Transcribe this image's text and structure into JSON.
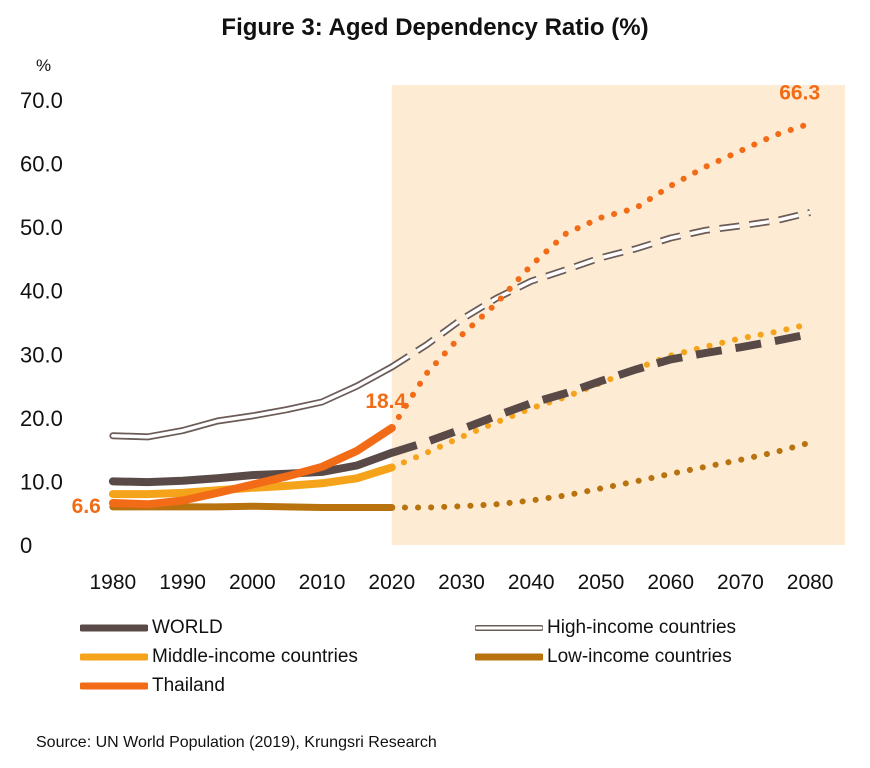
{
  "chart_data": {
    "type": "line",
    "title": "Figure 3: Aged Dependency Ratio (%)",
    "ylabel": "%",
    "y_tick_labels": [
      "0",
      "10.0",
      "20.0",
      "30.0",
      "40.0",
      "50.0",
      "60.0",
      "70.0"
    ],
    "y_ticks": [
      0,
      10,
      20,
      30,
      40,
      50,
      60,
      70
    ],
    "x_tick_labels": [
      "1980",
      "1990",
      "2000",
      "2010",
      "2020",
      "2030",
      "2040",
      "2050",
      "2060",
      "2070",
      "2080"
    ],
    "x_ticks": [
      1980,
      1990,
      2000,
      2010,
      2020,
      2030,
      2040,
      2050,
      2060,
      2070,
      2080
    ],
    "xlim": [
      1975,
      2085
    ],
    "ylim": [
      0,
      70
    ],
    "projection_start": 2020,
    "grid": false,
    "legend_position": "bottom",
    "series": [
      {
        "name": "WORLD",
        "color": "#594a47",
        "x": [
          1980,
          1985,
          1990,
          1995,
          2000,
          2005,
          2010,
          2015,
          2020,
          2025,
          2030,
          2035,
          2040,
          2045,
          2050,
          2055,
          2060,
          2065,
          2070,
          2075,
          2080
        ],
        "values": [
          10.0,
          9.9,
          10.1,
          10.5,
          11.0,
          11.2,
          11.5,
          12.5,
          14.5,
          16.2,
          18.2,
          20.3,
          22.3,
          23.9,
          25.8,
          27.6,
          29.2,
          30.2,
          31.1,
          32.1,
          33.2
        ]
      },
      {
        "name": "High-income countries",
        "color": "#6b5c58",
        "x": [
          1980,
          1985,
          1990,
          1995,
          2000,
          2005,
          2010,
          2015,
          2020,
          2025,
          2030,
          2035,
          2040,
          2045,
          2050,
          2055,
          2060,
          2065,
          2070,
          2075,
          2080
        ],
        "values": [
          17.2,
          17.0,
          18.0,
          19.5,
          20.3,
          21.3,
          22.5,
          25.0,
          28.0,
          31.5,
          35.5,
          38.8,
          41.5,
          43.3,
          45.2,
          46.6,
          48.3,
          49.5,
          50.2,
          51.0,
          52.3
        ]
      },
      {
        "name": "Middle-income countries",
        "color": "#f5a31a",
        "x": [
          1980,
          1985,
          1990,
          1995,
          2000,
          2005,
          2010,
          2015,
          2020,
          2025,
          2030,
          2035,
          2040,
          2045,
          2050,
          2055,
          2060,
          2065,
          2070,
          2075,
          2080
        ],
        "values": [
          8.0,
          8.0,
          8.2,
          8.6,
          9.0,
          9.3,
          9.7,
          10.5,
          12.2,
          14.5,
          17.0,
          19.3,
          21.5,
          23.3,
          25.5,
          27.7,
          29.8,
          31.2,
          32.5,
          33.5,
          34.8
        ]
      },
      {
        "name": "Low-income countries",
        "color": "#b8720e",
        "x": [
          1980,
          1985,
          1990,
          1995,
          2000,
          2005,
          2010,
          2015,
          2020,
          2025,
          2030,
          2035,
          2040,
          2045,
          2050,
          2055,
          2060,
          2065,
          2070,
          2075,
          2080
        ],
        "values": [
          6.0,
          6.0,
          6.0,
          6.0,
          6.1,
          6.0,
          5.9,
          5.9,
          5.9,
          5.9,
          6.1,
          6.4,
          7.0,
          7.8,
          8.9,
          10.0,
          11.2,
          12.3,
          13.4,
          14.6,
          16.1
        ]
      },
      {
        "name": "Thailand",
        "color": "#f26b16",
        "x": [
          1980,
          1985,
          1990,
          1995,
          2000,
          2005,
          2010,
          2015,
          2020,
          2025,
          2030,
          2035,
          2040,
          2045,
          2050,
          2055,
          2060,
          2065,
          2070,
          2075,
          2080
        ],
        "values": [
          6.6,
          6.4,
          7.0,
          8.2,
          9.5,
          10.8,
          12.3,
          14.8,
          18.4,
          27.0,
          33.0,
          38.0,
          44.0,
          49.0,
          51.5,
          53.0,
          56.5,
          59.5,
          62.0,
          64.5,
          66.3
        ]
      }
    ],
    "annotations": [
      {
        "text": "6.6",
        "x": 1980,
        "y": 6.6,
        "color": "#f26b16"
      },
      {
        "text": "18.4",
        "x": 2020,
        "y": 18.4,
        "color": "#f26b16"
      },
      {
        "text": "66.3",
        "x": 2080,
        "y": 66.3,
        "color": "#f26b16"
      }
    ]
  },
  "source": "Source: UN World Population (2019), Krungsri Research",
  "colors": {
    "projection_background": "#fdebd4"
  }
}
